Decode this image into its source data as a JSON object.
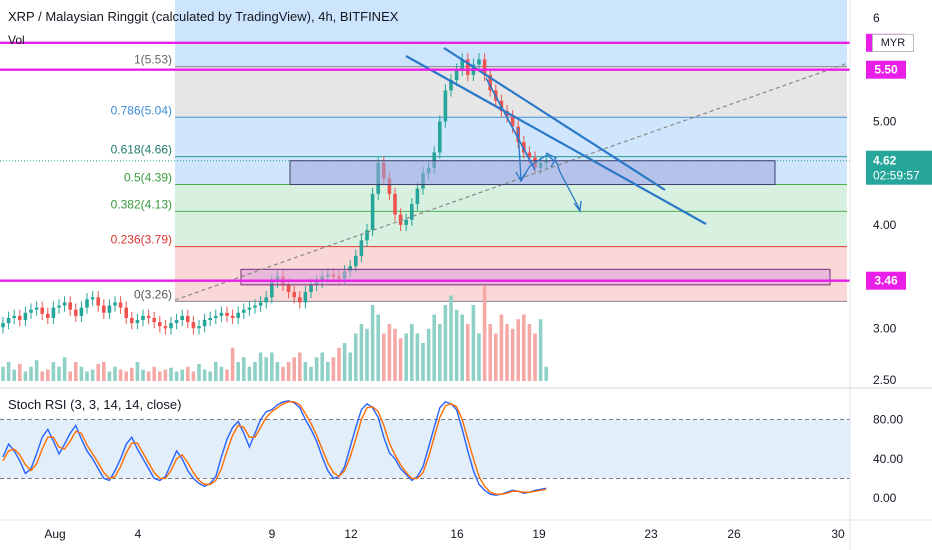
{
  "header": {
    "title": "XRP / Malaysian Ringgit (calculated by TradingView), 4h, BITFINEX",
    "volume_label": "Vol",
    "currency": "MYR"
  },
  "colors": {
    "up": "#26a69a",
    "down": "#ef5350",
    "magenta": "#e91ee9",
    "trend": "#2a78c8",
    "fib_blue": "#bcdcfb",
    "fib_gray": "#dcdcdc",
    "fib_green": "#c7ead2",
    "fib_red": "#f9c8c8",
    "rsi_k": "#2962ff",
    "rsi_d": "#ff6d00"
  },
  "chart_data": [
    {
      "type": "candlestick",
      "title": "XRP / Malaysian Ringgit (calculated by TradingView), 4h, BITFINEX",
      "x_ticks": [
        "Aug",
        "4",
        "9",
        "12",
        "16",
        "19",
        "23",
        "26",
        "30"
      ],
      "y_ticks": [
        "2.50",
        "3.00",
        "4.00",
        "5.00",
        "6"
      ],
      "ylim": [
        2.5,
        6.0
      ],
      "current_price": "4.62",
      "countdown": "02:59:57",
      "price_levels": [
        "5.76",
        "5.50",
        "3.46"
      ],
      "fib_levels": [
        {
          "label": "1(5.53)",
          "value": 5.53
        },
        {
          "label": "0.786(5.04)",
          "value": 5.04
        },
        {
          "label": "0.618(4.66)",
          "value": 4.66
        },
        {
          "label": "0.5(4.39)",
          "value": 4.39
        },
        {
          "label": "0.382(4.13)",
          "value": 4.13
        },
        {
          "label": "0.236(3.79)",
          "value": 3.79
        },
        {
          "label": "0(3.26)",
          "value": 3.26
        }
      ],
      "zones": [
        {
          "name": "resistance-zone",
          "low": 4.39,
          "high": 4.62
        },
        {
          "name": "support-zone",
          "low": 3.42,
          "high": 3.57
        }
      ],
      "closes": [
        3.05,
        3.1,
        3.12,
        3.08,
        3.15,
        3.18,
        3.2,
        3.14,
        3.1,
        3.2,
        3.22,
        3.25,
        3.18,
        3.12,
        3.2,
        3.28,
        3.3,
        3.22,
        3.15,
        3.22,
        3.25,
        3.2,
        3.1,
        3.05,
        3.08,
        3.12,
        3.1,
        3.06,
        3.02,
        3.0,
        3.05,
        3.08,
        3.12,
        3.06,
        3.0,
        3.02,
        3.08,
        3.1,
        3.12,
        3.15,
        3.12,
        3.1,
        3.15,
        3.18,
        3.2,
        3.22,
        3.25,
        3.3,
        3.45,
        3.5,
        3.42,
        3.35,
        3.3,
        3.25,
        3.35,
        3.42,
        3.45,
        3.5,
        3.52,
        3.5,
        3.48,
        3.55,
        3.6,
        3.7,
        3.85,
        3.95,
        4.3,
        4.6,
        4.45,
        4.3,
        4.1,
        4.0,
        4.05,
        4.2,
        4.35,
        4.5,
        4.55,
        4.7,
        5.0,
        5.3,
        5.4,
        5.5,
        5.6,
        5.45,
        5.55,
        5.6,
        5.45,
        5.3,
        5.2,
        5.1,
        5.05,
        4.95,
        4.8,
        4.7,
        4.65,
        4.55,
        4.6,
        4.62
      ],
      "volumes": [
        0.15,
        0.2,
        0.12,
        0.18,
        0.1,
        0.15,
        0.22,
        0.1,
        0.12,
        0.2,
        0.15,
        0.25,
        0.1,
        0.2,
        0.15,
        0.1,
        0.12,
        0.18,
        0.2,
        0.1,
        0.15,
        0.12,
        0.1,
        0.14,
        0.2,
        0.12,
        0.1,
        0.15,
        0.1,
        0.12,
        0.14,
        0.1,
        0.12,
        0.15,
        0.1,
        0.18,
        0.12,
        0.1,
        0.2,
        0.15,
        0.12,
        0.35,
        0.2,
        0.25,
        0.15,
        0.2,
        0.3,
        0.25,
        0.3,
        0.2,
        0.15,
        0.2,
        0.25,
        0.3,
        0.2,
        0.15,
        0.25,
        0.3,
        0.2,
        0.25,
        0.35,
        0.4,
        0.3,
        0.5,
        0.6,
        0.55,
        0.8,
        0.7,
        0.5,
        0.6,
        0.55,
        0.45,
        0.5,
        0.6,
        0.5,
        0.4,
        0.55,
        0.7,
        0.6,
        0.8,
        0.9,
        0.75,
        0.7,
        0.6,
        0.8,
        0.5,
        1.0,
        0.6,
        0.5,
        0.7,
        0.6,
        0.55,
        0.65,
        0.7,
        0.6,
        0.5,
        0.65,
        0.15
      ]
    },
    {
      "type": "line",
      "title": "Stoch RSI (3, 3, 14, 14, close)",
      "y_ticks": [
        "0.00",
        "40.00",
        "80.00"
      ],
      "ylim": [
        -8,
        108
      ],
      "bands": [
        20,
        80
      ],
      "series": [
        {
          "values": [
            42,
            55,
            48,
            38,
            25,
            30,
            45,
            62,
            70,
            58,
            45,
            55,
            66,
            74,
            60,
            48,
            40,
            30,
            20,
            18,
            28,
            40,
            55,
            62,
            50,
            40,
            30,
            20,
            18,
            22,
            35,
            48,
            40,
            28,
            20,
            15,
            12,
            15,
            22,
            42,
            60,
            72,
            78,
            66,
            52,
            66,
            80,
            88,
            90,
            95,
            98,
            99,
            97,
            92,
            80,
            70,
            58,
            42,
            28,
            20,
            22,
            32,
            52,
            72,
            90,
            96,
            92,
            82,
            62,
            46,
            40,
            30,
            24,
            18,
            22,
            32,
            52,
            72,
            92,
            98,
            96,
            90,
            70,
            48,
            28,
            14,
            8,
            4,
            3,
            4,
            6,
            8,
            7,
            5,
            6,
            8,
            9,
            10
          ]
        },
        {
          "values": [
            38,
            48,
            50,
            44,
            34,
            28,
            35,
            50,
            62,
            62,
            52,
            50,
            58,
            68,
            66,
            54,
            45,
            36,
            26,
            20,
            22,
            32,
            46,
            56,
            56,
            46,
            36,
            26,
            20,
            20,
            28,
            40,
            44,
            36,
            26,
            18,
            14,
            14,
            18,
            30,
            48,
            64,
            74,
            72,
            62,
            62,
            72,
            82,
            88,
            92,
            96,
            98,
            98,
            95,
            86,
            76,
            64,
            50,
            36,
            26,
            22,
            28,
            42,
            60,
            80,
            92,
            93,
            88,
            74,
            56,
            44,
            34,
            26,
            20,
            20,
            26,
            42,
            62,
            82,
            94,
            96,
            93,
            80,
            60,
            40,
            22,
            12,
            6,
            4,
            4,
            5,
            7,
            7,
            6,
            6,
            7,
            8,
            9
          ]
        }
      ]
    }
  ]
}
